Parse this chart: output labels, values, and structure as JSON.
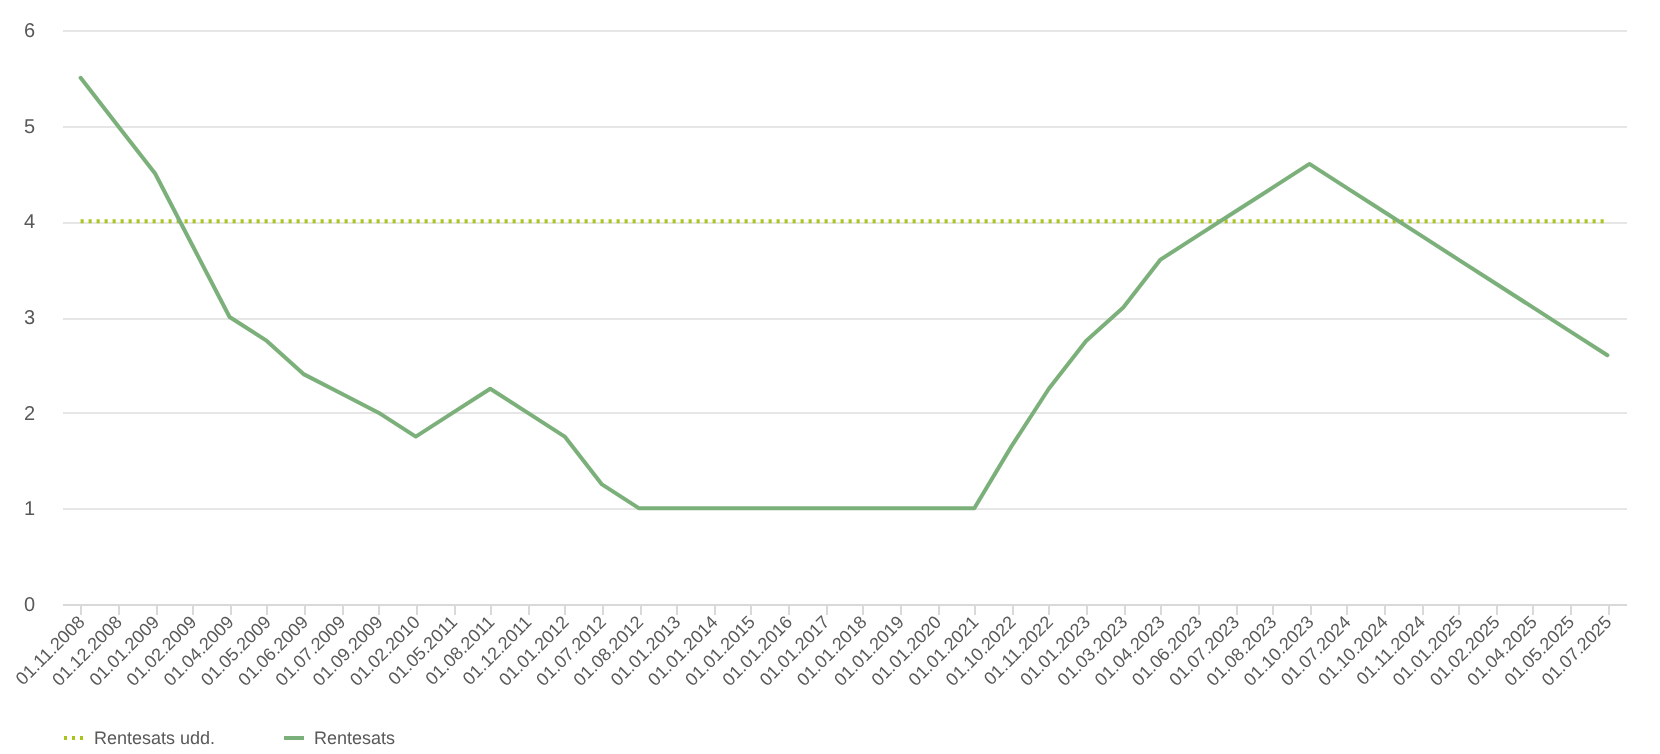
{
  "chart_data": {
    "type": "line",
    "categories": [
      "01.11.2008",
      "01.12.2008",
      "01.01.2009",
      "01.02.2009",
      "01.04.2009",
      "01.05.2009",
      "01.06.2009",
      "01.07.2009",
      "01.09.2009",
      "01.02.2010",
      "01.05.2011",
      "01.08.2011",
      "01.12.2011",
      "01.01.2012",
      "01.07.2012",
      "01.08.2012",
      "01.01.2013",
      "01.01.2014",
      "01.01.2015",
      "01.01.2016",
      "01.01.2017",
      "01.01.2018",
      "01.01.2019",
      "01.01.2020",
      "01.01.2021",
      "01.10.2022",
      "01.11.2022",
      "01.01.2023",
      "01.03.2023",
      "01.04.2023",
      "01.06.2023",
      "01.07.2023",
      "01.08.2023",
      "01.10.2023",
      "01.07.2024",
      "01.10.2024",
      "01.11.2024",
      "01.01.2025",
      "01.02.2025",
      "01.04.2025",
      "01.05.2025",
      "01.07.2025"
    ],
    "series": [
      {
        "name": "Rentesats udd.",
        "color": "#a9c41c",
        "line_style": "dotted",
        "values": [
          4,
          4,
          4,
          4,
          4,
          4,
          4,
          4,
          4,
          4,
          4,
          4,
          4,
          4,
          4,
          4,
          4,
          4,
          4,
          4,
          4,
          4,
          4,
          4,
          4,
          4,
          4,
          4,
          4,
          4,
          4,
          4,
          4,
          4,
          4,
          4,
          4,
          4,
          4,
          4,
          4,
          4
        ]
      },
      {
        "name": "Rentesats",
        "color": "#7cb07a",
        "line_style": "solid",
        "values": [
          5.5,
          5.0,
          4.5,
          3.75,
          3.0,
          2.75,
          2.4,
          2.2,
          2.0,
          1.75,
          2.0,
          2.25,
          2.0,
          1.75,
          1.25,
          1.0,
          1.0,
          1.0,
          1.0,
          1.0,
          1.0,
          1.0,
          1.0,
          1.0,
          1.0,
          1.65,
          2.25,
          2.75,
          3.1,
          3.6,
          3.85,
          4.1,
          4.35,
          4.6,
          4.35,
          4.1,
          3.85,
          3.6,
          3.35,
          3.1,
          2.85,
          2.6
        ]
      }
    ],
    "ylim": [
      0,
      6
    ],
    "yticks": [
      0,
      1,
      2,
      3,
      4,
      5,
      6
    ],
    "grid": "y",
    "legend": "bottom"
  }
}
